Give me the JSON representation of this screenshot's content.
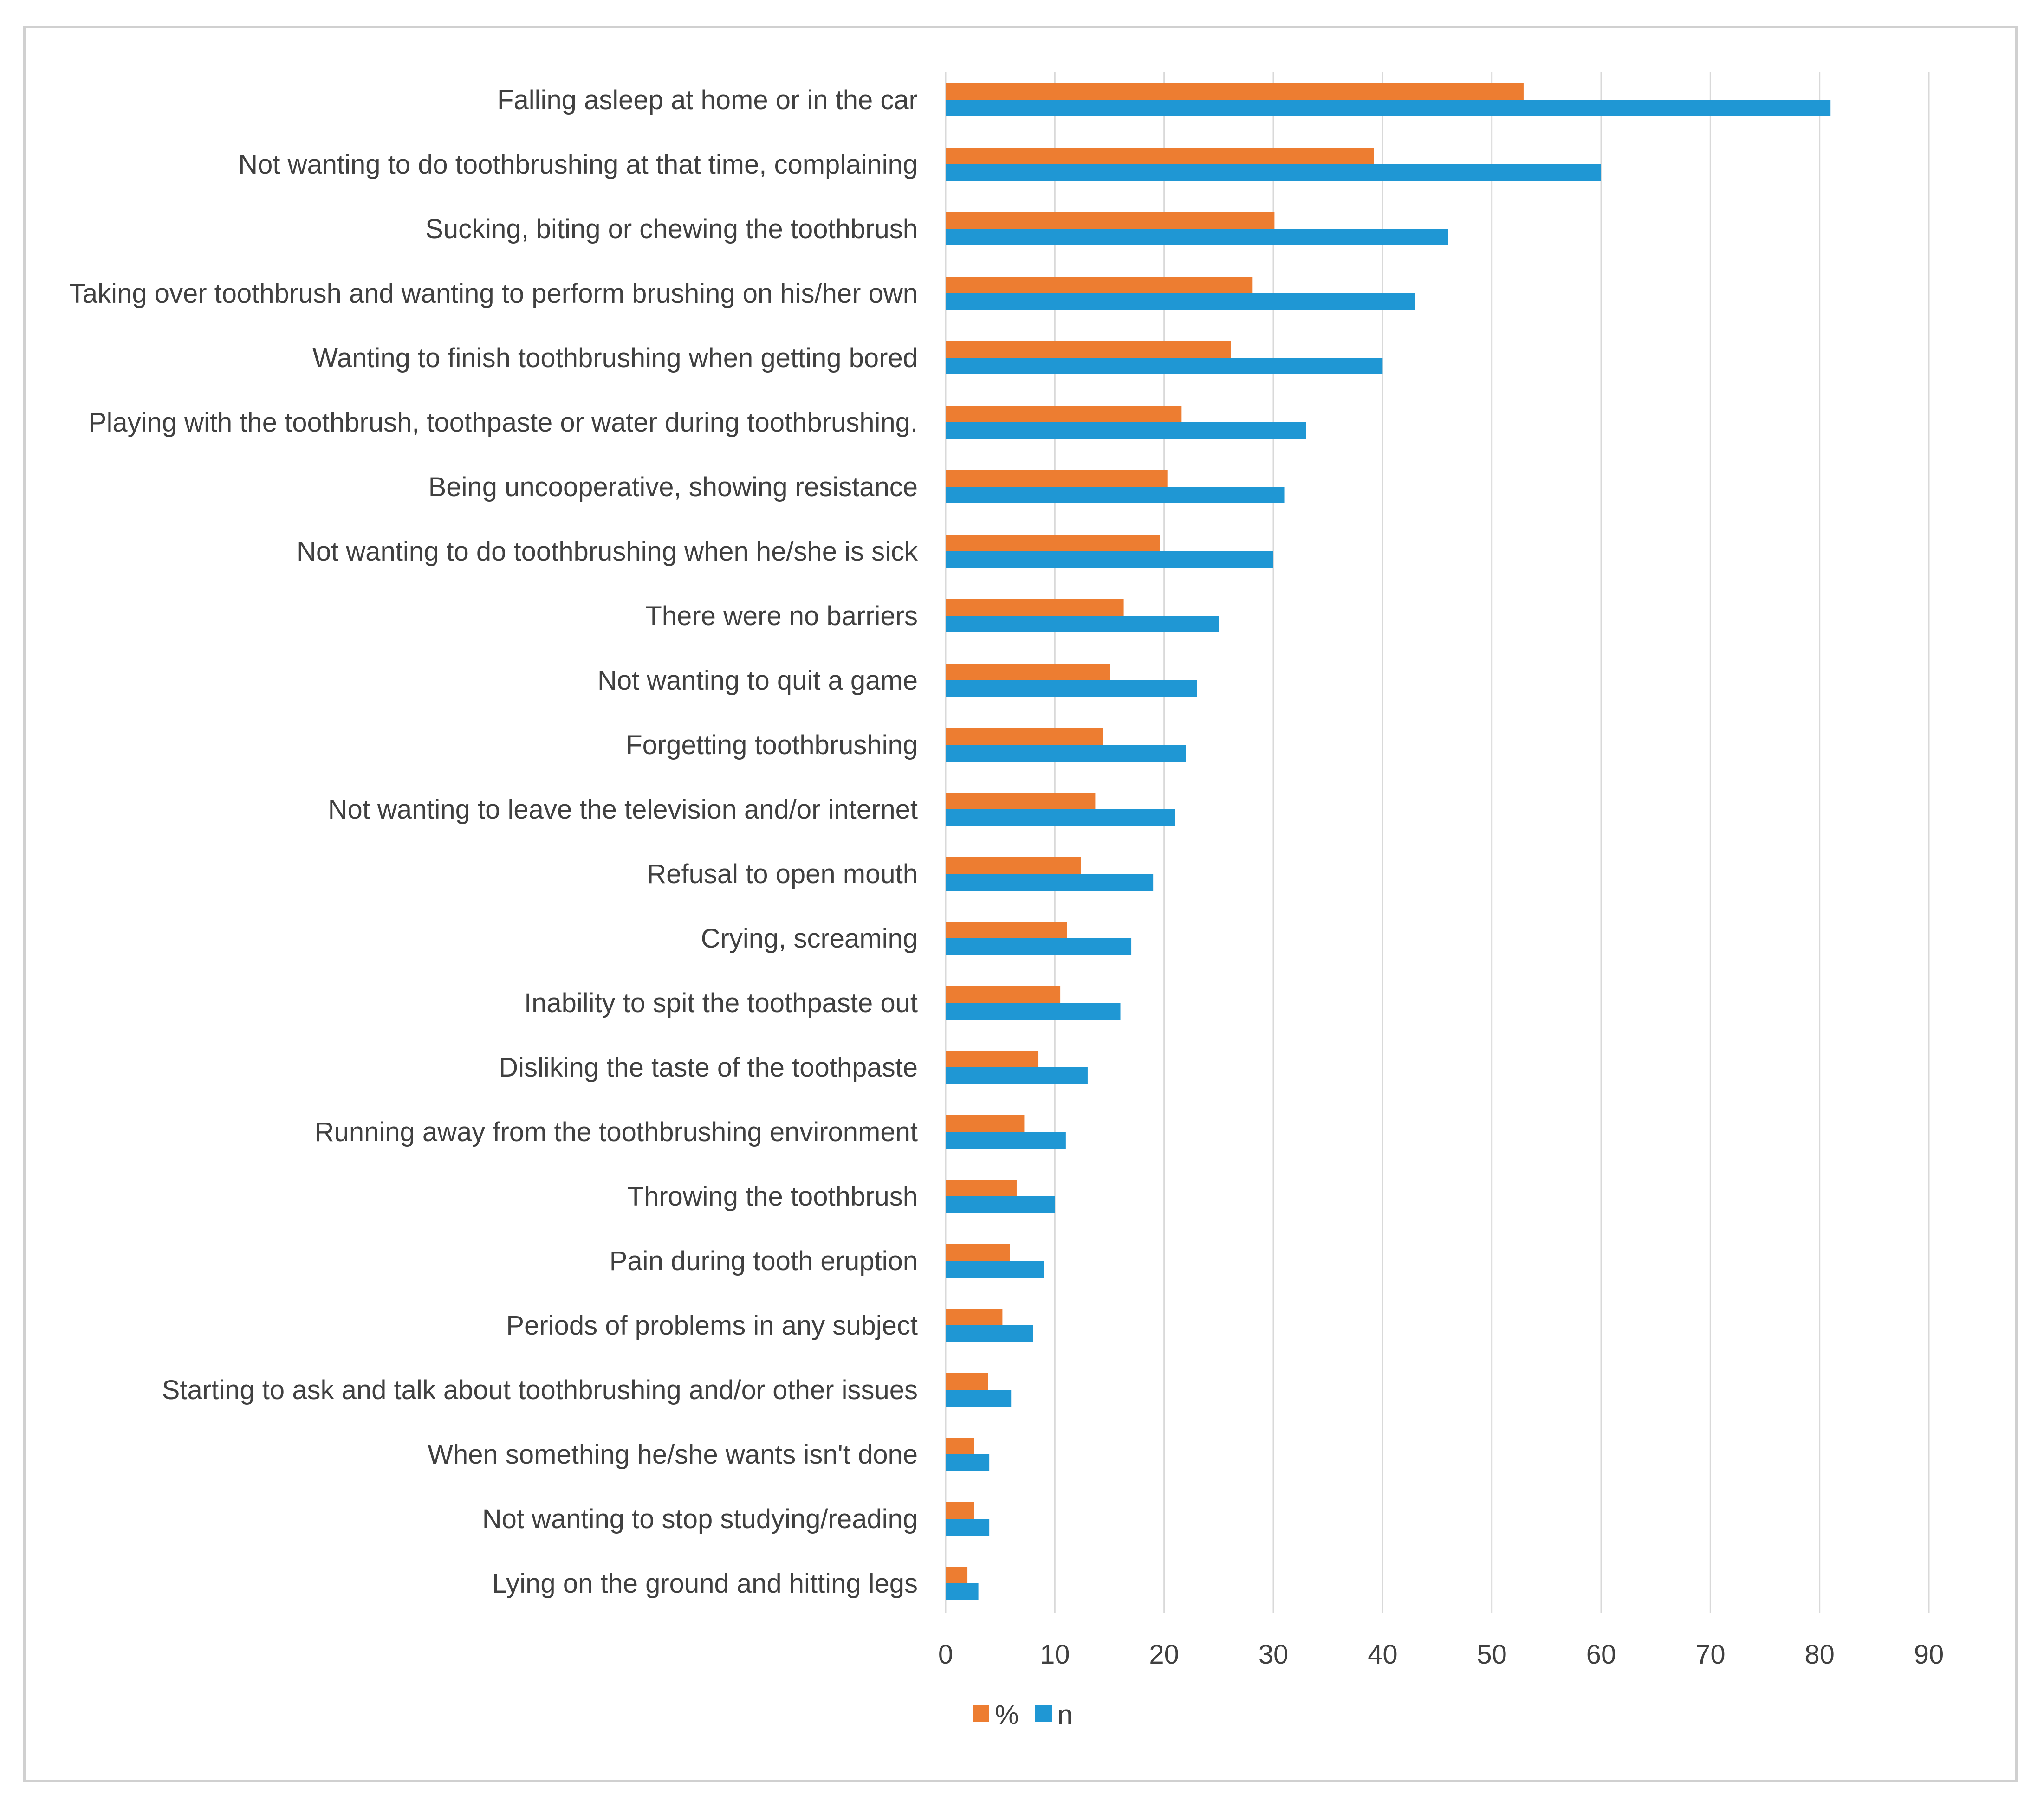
{
  "chart_data": {
    "type": "bar",
    "orientation": "horizontal",
    "title": "",
    "xlabel": "",
    "ylabel": "",
    "xlim": [
      0,
      90
    ],
    "xticks": [
      0,
      10,
      20,
      30,
      40,
      50,
      60,
      70,
      80,
      90
    ],
    "grid": true,
    "legend_position": "bottom",
    "categories": [
      "Falling asleep at home or in the car",
      "Not wanting to do toothbrushing at that time, complaining",
      "Sucking, biting or chewing the toothbrush",
      "Taking over toothbrush and wanting to perform brushing on his/her own",
      "Wanting to finish toothbrushing when getting bored",
      "Playing with the toothbrush, toothpaste or water during toothbrushing.",
      "Being uncooperative, showing resistance",
      "Not wanting to do toothbrushing when he/she is sick",
      "There were no barriers",
      "Not wanting to quit a game",
      "Forgetting toothbrushing",
      "Not wanting to leave the television and/or internet",
      "Refusal to open mouth",
      "Crying, screaming",
      "Inability to spit the toothpaste out",
      "Disliking the taste of the toothpaste",
      "Running away from the toothbrushing environment",
      "Throwing the toothbrush",
      "Pain during tooth eruption",
      "Periods of problems in any subject",
      "Starting to ask and talk about toothbrushing and/or other issues",
      "When something he/she wants isn't done",
      "Not wanting to stop studying/reading",
      "Lying on the ground and hitting legs"
    ],
    "series": [
      {
        "name": "%",
        "color": "#ED7D31",
        "values": [
          52.9,
          39.2,
          30.1,
          28.1,
          26.1,
          21.6,
          20.3,
          19.6,
          16.3,
          15.0,
          14.4,
          13.7,
          12.4,
          11.1,
          10.5,
          8.5,
          7.2,
          6.5,
          5.9,
          5.2,
          3.9,
          2.6,
          2.6,
          2.0
        ]
      },
      {
        "name": "n",
        "color": "#1F97D4",
        "values": [
          81,
          60,
          46,
          43,
          40,
          33,
          31,
          30,
          25,
          23,
          22,
          21,
          19,
          17,
          16,
          13,
          11,
          10,
          9,
          8,
          6,
          4,
          4,
          3
        ]
      }
    ]
  }
}
